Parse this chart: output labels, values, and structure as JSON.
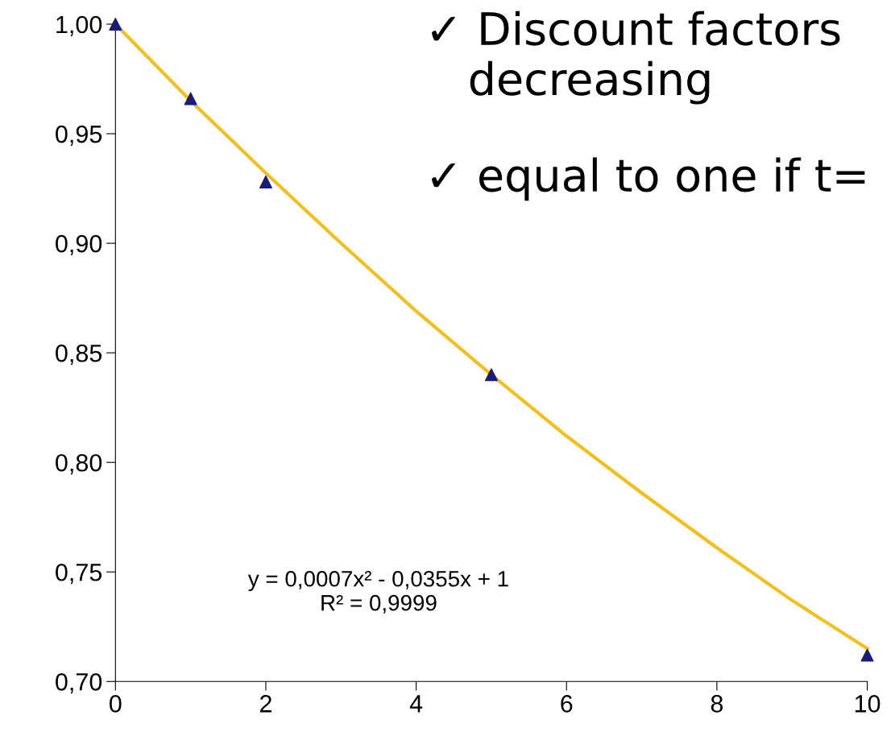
{
  "chart_data": {
    "type": "scatter",
    "series": [
      {
        "color": "#1b1b7a",
        "marker": "triangle",
        "x": [
          0,
          1,
          2,
          5,
          10
        ],
        "values": [
          1.0,
          0.966,
          0.928,
          0.84,
          0.712
        ]
      },
      {
        "type": "line",
        "color": "#f2c01e",
        "marker": "none",
        "x": [
          0,
          1,
          2,
          3,
          4,
          5,
          6,
          7,
          8,
          9,
          10
        ],
        "values": [
          1.0,
          0.965,
          0.932,
          0.9,
          0.869,
          0.84,
          0.812,
          0.786,
          0.761,
          0.737,
          0.715
        ]
      }
    ],
    "xlim": [
      0,
      10
    ],
    "xticks": [
      0,
      2,
      4,
      6,
      8,
      10
    ],
    "ylim": [
      0.7,
      1.0
    ],
    "yticks": [
      {
        "value": 0.7,
        "label": "0,70"
      },
      {
        "value": 0.75,
        "label": "0,75"
      },
      {
        "value": 0.8,
        "label": "0,80"
      },
      {
        "value": 0.85,
        "label": "0,85"
      },
      {
        "value": 0.9,
        "label": "0,90"
      },
      {
        "value": 0.95,
        "label": "0,95"
      },
      {
        "value": 1.0,
        "label": "1,00"
      }
    ],
    "grid": false,
    "annotations": [
      "✓ Discount factors\n   decreasing",
      "✓ equal to one if t=",
      "y = 0,0007x² - 0,0355x + 1\nR² = 0,9999"
    ]
  }
}
